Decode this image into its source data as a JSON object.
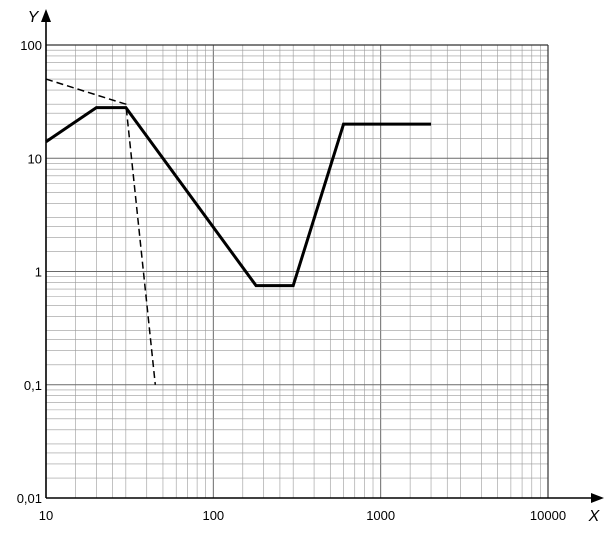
{
  "chart_data": {
    "type": "line",
    "title": "",
    "xlabel": "X",
    "ylabel": "Y",
    "xscale": "log",
    "yscale": "log",
    "xlim": [
      10,
      10000
    ],
    "ylim": [
      0.01,
      100
    ],
    "grid": true,
    "x_tick_labels": [
      {
        "value": 10,
        "label": "10"
      },
      {
        "value": 100,
        "label": "100"
      },
      {
        "value": 1000,
        "label": "1000"
      },
      {
        "value": 10000,
        "label": "10000"
      }
    ],
    "y_tick_labels": [
      {
        "value": 0.01,
        "label": "0,01"
      },
      {
        "value": 0.1,
        "label": "0,1"
      },
      {
        "value": 1,
        "label": "1"
      },
      {
        "value": 10,
        "label": "10"
      },
      {
        "value": 100,
        "label": "100"
      }
    ],
    "series": [
      {
        "style": "solid",
        "color": "#000000",
        "points": [
          [
            10,
            14
          ],
          [
            20,
            28
          ],
          [
            30,
            28
          ],
          [
            180,
            0.75
          ],
          [
            300,
            0.75
          ],
          [
            600,
            20
          ],
          [
            2000,
            20
          ]
        ]
      },
      {
        "style": "dashed",
        "color": "#000000",
        "points": [
          [
            10,
            50
          ],
          [
            30,
            30
          ],
          [
            45,
            0.1
          ]
        ]
      }
    ]
  }
}
